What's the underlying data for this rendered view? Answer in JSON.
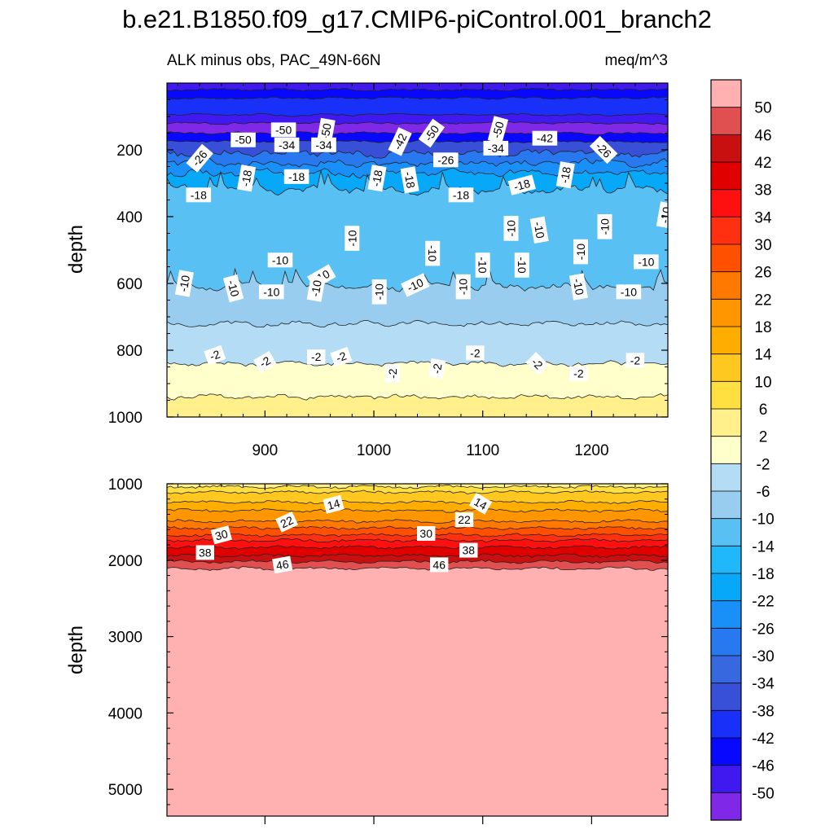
{
  "figure": {
    "title": "b.e21.B1850.f09_g17.CMIP6-piControl.001_branch2",
    "subtitle": "ALK minus obs, PAC_49N-66N",
    "units": "meq/m^3"
  },
  "chart_data": [
    {
      "type": "contour",
      "panel": "upper",
      "title": "ALK minus obs, PAC_49N-66N",
      "units": "meq/m^3",
      "xlabel": "",
      "ylabel": "depth",
      "xlim": [
        810,
        1270
      ],
      "ylim": [
        1000,
        0
      ],
      "x_ticks": [
        900,
        1000,
        1100,
        1200
      ],
      "y_ticks": [
        200,
        400,
        600,
        800,
        1000
      ],
      "bands": [
        {
          "from_depth": 0,
          "to_depth": 20,
          "value": -48
        },
        {
          "from_depth": 20,
          "to_depth": 45,
          "value": -44
        },
        {
          "from_depth": 45,
          "to_depth": 95,
          "value": -40
        },
        {
          "from_depth": 95,
          "to_depth": 120,
          "value": -48
        },
        {
          "from_depth": 120,
          "to_depth": 150,
          "value": -52
        },
        {
          "from_depth": 150,
          "to_depth": 175,
          "value": -44
        },
        {
          "from_depth": 175,
          "to_depth": 210,
          "value": -36
        },
        {
          "from_depth": 210,
          "to_depth": 240,
          "value": -28
        },
        {
          "from_depth": 240,
          "to_depth": 270,
          "value": -24
        },
        {
          "from_depth": 270,
          "to_depth": 320,
          "value": -20
        },
        {
          "from_depth": 320,
          "to_depth": 610,
          "value": -12
        },
        {
          "from_depth": 610,
          "to_depth": 720,
          "value": -8
        },
        {
          "from_depth": 720,
          "to_depth": 840,
          "value": -4
        },
        {
          "from_depth": 840,
          "to_depth": 940,
          "value": 0
        },
        {
          "from_depth": 940,
          "to_depth": 1000,
          "value": 4
        }
      ],
      "contour_labels": [
        {
          "text": "-50",
          "x": 917,
          "depth": 140,
          "angle": 0
        },
        {
          "text": "-50",
          "x": 956,
          "depth": 145,
          "angle": -80
        },
        {
          "text": "-50",
          "x": 1053,
          "depth": 150,
          "angle": -55
        },
        {
          "text": "-50",
          "x": 1114,
          "depth": 140,
          "angle": -75
        },
        {
          "text": "-50",
          "x": 880,
          "depth": 170,
          "angle": 0
        },
        {
          "text": "-42",
          "x": 1024,
          "depth": 175,
          "angle": -65
        },
        {
          "text": "-42",
          "x": 1157,
          "depth": 165,
          "angle": 0
        },
        {
          "text": "-34",
          "x": 920,
          "depth": 185,
          "angle": 0
        },
        {
          "text": "-34",
          "x": 954,
          "depth": 185,
          "angle": 0
        },
        {
          "text": "-34",
          "x": 1112,
          "depth": 195,
          "angle": 0
        },
        {
          "text": "-26",
          "x": 840,
          "depth": 225,
          "angle": -50
        },
        {
          "text": "-26",
          "x": 1211,
          "depth": 200,
          "angle": 45
        },
        {
          "text": "-26",
          "x": 1066,
          "depth": 230,
          "angle": 0
        },
        {
          "text": "-18",
          "x": 883,
          "depth": 285,
          "angle": -80
        },
        {
          "text": "-18",
          "x": 929,
          "depth": 280,
          "angle": 0
        },
        {
          "text": "-18",
          "x": 1003,
          "depth": 285,
          "angle": -80
        },
        {
          "text": "-18",
          "x": 1033,
          "depth": 290,
          "angle": 80
        },
        {
          "text": "-18",
          "x": 1080,
          "depth": 335,
          "angle": 0
        },
        {
          "text": "-18",
          "x": 1136,
          "depth": 305,
          "angle": -15
        },
        {
          "text": "-18",
          "x": 1176,
          "depth": 275,
          "angle": -80
        },
        {
          "text": "-18",
          "x": 839,
          "depth": 335,
          "angle": 0
        },
        {
          "text": "-10",
          "x": 980,
          "depth": 465,
          "angle": -90
        },
        {
          "text": "-10",
          "x": 1126,
          "depth": 435,
          "angle": -90
        },
        {
          "text": "-10",
          "x": 1152,
          "depth": 440,
          "angle": 80
        },
        {
          "text": "-10",
          "x": 1212,
          "depth": 430,
          "angle": -90
        },
        {
          "text": "-10",
          "x": 1268,
          "depth": 395,
          "angle": -80
        },
        {
          "text": "-10",
          "x": 1054,
          "depth": 510,
          "angle": 90
        },
        {
          "text": "-10",
          "x": 1100,
          "depth": 545,
          "angle": 90
        },
        {
          "text": "-10",
          "x": 1136,
          "depth": 545,
          "angle": 90
        },
        {
          "text": "-10",
          "x": 1190,
          "depth": 505,
          "angle": -90
        },
        {
          "text": "-10",
          "x": 1250,
          "depth": 535,
          "angle": 0
        },
        {
          "text": "-10",
          "x": 914,
          "depth": 530,
          "angle": 0
        },
        {
          "text": "-10",
          "x": 952,
          "depth": 580,
          "angle": -30
        },
        {
          "text": "-10",
          "x": 826,
          "depth": 600,
          "angle": -80
        },
        {
          "text": "-10",
          "x": 871,
          "depth": 615,
          "angle": 75
        },
        {
          "text": "-10",
          "x": 906,
          "depth": 625,
          "angle": 0
        },
        {
          "text": "-10",
          "x": 947,
          "depth": 615,
          "angle": -80
        },
        {
          "text": "-10",
          "x": 1005,
          "depth": 625,
          "angle": -90
        },
        {
          "text": "-10",
          "x": 1038,
          "depth": 605,
          "angle": -25
        },
        {
          "text": "-10",
          "x": 1082,
          "depth": 610,
          "angle": -90
        },
        {
          "text": "-10",
          "x": 1188,
          "depth": 610,
          "angle": 80
        },
        {
          "text": "-10",
          "x": 1234,
          "depth": 625,
          "angle": 0
        },
        {
          "text": "-2",
          "x": 854,
          "depth": 815,
          "angle": -20
        },
        {
          "text": "-2",
          "x": 900,
          "depth": 835,
          "angle": -30
        },
        {
          "text": "-2",
          "x": 947,
          "depth": 820,
          "angle": 0
        },
        {
          "text": "-2",
          "x": 970,
          "depth": 820,
          "angle": -20
        },
        {
          "text": "-2",
          "x": 1017,
          "depth": 870,
          "angle": -90
        },
        {
          "text": "-2",
          "x": 1058,
          "depth": 855,
          "angle": -80
        },
        {
          "text": "-2",
          "x": 1093,
          "depth": 808,
          "angle": 0
        },
        {
          "text": "-2",
          "x": 1150,
          "depth": 840,
          "angle": 45
        },
        {
          "text": "-2",
          "x": 1188,
          "depth": 870,
          "angle": 0
        },
        {
          "text": "-2",
          "x": 1240,
          "depth": 830,
          "angle": 0
        }
      ]
    },
    {
      "type": "contour",
      "panel": "lower",
      "xlabel": "",
      "ylabel": "depth",
      "xlim": [
        810,
        1270
      ],
      "ylim": [
        5350,
        1000
      ],
      "y_ticks": [
        1000,
        2000,
        3000,
        4000,
        5000
      ],
      "contour_levels_depth": [
        {
          "value": 6,
          "depth": 1040
        },
        {
          "value": 10,
          "depth": 1110
        },
        {
          "value": 14,
          "depth": 1240
        },
        {
          "value": 18,
          "depth": 1350
        },
        {
          "value": 22,
          "depth": 1490
        },
        {
          "value": 26,
          "depth": 1580
        },
        {
          "value": 30,
          "depth": 1670
        },
        {
          "value": 34,
          "depth": 1740
        },
        {
          "value": 38,
          "depth": 1830
        },
        {
          "value": 42,
          "depth": 1940
        },
        {
          "value": 46,
          "depth": 2020
        },
        {
          "value": 50,
          "depth": 2110
        }
      ],
      "below_value": 54,
      "contour_labels": [
        {
          "text": "14",
          "x": 963,
          "depth": 1270,
          "angle": -15
        },
        {
          "text": "14",
          "x": 1098,
          "depth": 1260,
          "angle": 30
        },
        {
          "text": "22",
          "x": 920,
          "depth": 1500,
          "angle": -25
        },
        {
          "text": "22",
          "x": 1083,
          "depth": 1470,
          "angle": 0
        },
        {
          "text": "30",
          "x": 860,
          "depth": 1670,
          "angle": -15
        },
        {
          "text": "30",
          "x": 1048,
          "depth": 1650,
          "angle": 0
        },
        {
          "text": "38",
          "x": 845,
          "depth": 1900,
          "angle": 0
        },
        {
          "text": "38",
          "x": 1087,
          "depth": 1870,
          "angle": 0
        },
        {
          "text": "46",
          "x": 916,
          "depth": 2060,
          "angle": -10
        },
        {
          "text": "46",
          "x": 1060,
          "depth": 2060,
          "angle": 0
        }
      ]
    },
    {
      "type": "colorbar",
      "labels": [
        "50",
        "46",
        "42",
        "38",
        "34",
        "30",
        "26",
        "22",
        "18",
        "14",
        "10",
        "6",
        "2",
        "-2",
        "-6",
        "-10",
        "-14",
        "-18",
        "-22",
        "-26",
        "-30",
        "-34",
        "-38",
        "-42",
        "-46",
        "-50"
      ],
      "colors": [
        "#ffb0b0",
        "#e05050",
        "#c81010",
        "#e00000",
        "#ff1010",
        "#ff3010",
        "#ff5000",
        "#ff7800",
        "#ff9600",
        "#ffae00",
        "#ffc820",
        "#ffe040",
        "#fff08c",
        "#ffffcc",
        "#b4dcf4",
        "#98cdef",
        "#58c0f2",
        "#20b8f8",
        "#08a8f8",
        "#1890f8",
        "#2878ef",
        "#3868e0",
        "#3850d8",
        "#1830f8",
        "#0808ff",
        "#4018f0",
        "#8028e8"
      ]
    }
  ]
}
